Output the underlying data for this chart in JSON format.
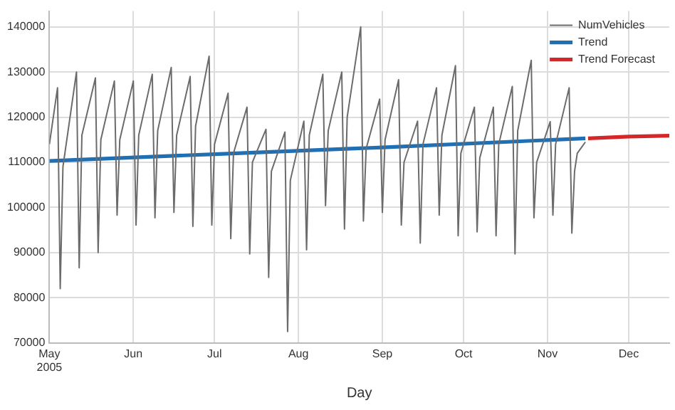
{
  "chart_data": {
    "type": "line",
    "xlabel": "Day",
    "xlim": [
      "2005-05-01",
      "2005-12-16"
    ],
    "xticks": [
      {
        "value": "2005-05-01",
        "label": "May\n2005"
      },
      {
        "value": "2005-06-01",
        "label": "Jun"
      },
      {
        "value": "2005-07-01",
        "label": "Jul"
      },
      {
        "value": "2005-08-01",
        "label": "Aug"
      },
      {
        "value": "2005-09-01",
        "label": "Sep"
      },
      {
        "value": "2005-10-01",
        "label": "Oct"
      },
      {
        "value": "2005-11-01",
        "label": "Nov"
      },
      {
        "value": "2005-12-01",
        "label": "Dec"
      }
    ],
    "ylim": [
      70000,
      143500
    ],
    "yticks": [
      70000,
      80000,
      90000,
      100000,
      110000,
      120000,
      130000,
      140000
    ],
    "grid": true,
    "legend": "top right",
    "marker": "none",
    "line_style": "solid",
    "series": [
      {
        "name": "NumVehicles",
        "color": "#6b6b6b",
        "x": [
          "2005-05-01",
          "2005-05-04",
          "2005-05-05",
          "2005-05-06",
          "2005-05-11",
          "2005-05-12",
          "2005-05-13",
          "2005-05-18",
          "2005-05-19",
          "2005-05-20",
          "2005-05-25",
          "2005-05-26",
          "2005-05-27",
          "2005-06-01",
          "2005-06-02",
          "2005-06-03",
          "2005-06-08",
          "2005-06-09",
          "2005-06-10",
          "2005-06-15",
          "2005-06-16",
          "2005-06-17",
          "2005-06-22",
          "2005-06-23",
          "2005-06-24",
          "2005-06-29",
          "2005-06-30",
          "2005-07-01",
          "2005-07-06",
          "2005-07-07",
          "2005-07-08",
          "2005-07-13",
          "2005-07-14",
          "2005-07-15",
          "2005-07-20",
          "2005-07-21",
          "2005-07-22",
          "2005-07-27",
          "2005-07-28",
          "2005-07-29",
          "2005-08-03",
          "2005-08-04",
          "2005-08-05",
          "2005-08-10",
          "2005-08-11",
          "2005-08-12",
          "2005-08-17",
          "2005-08-18",
          "2005-08-19",
          "2005-08-24",
          "2005-08-25",
          "2005-08-26",
          "2005-08-31",
          "2005-09-01",
          "2005-09-02",
          "2005-09-07",
          "2005-09-08",
          "2005-09-09",
          "2005-09-14",
          "2005-09-15",
          "2005-09-16",
          "2005-09-21",
          "2005-09-22",
          "2005-09-23",
          "2005-09-28",
          "2005-09-29",
          "2005-09-30",
          "2005-10-05",
          "2005-10-06",
          "2005-10-07",
          "2005-10-12",
          "2005-10-13",
          "2005-10-14",
          "2005-10-19",
          "2005-10-20",
          "2005-10-21",
          "2005-10-26",
          "2005-10-27",
          "2005-10-28",
          "2005-11-02",
          "2005-11-03",
          "2005-11-04",
          "2005-11-09",
          "2005-11-10",
          "2005-11-11",
          "2005-11-12",
          "2005-11-15"
        ],
        "values": [
          114000,
          126500,
          82000,
          109000,
          130000,
          86600,
          116000,
          128700,
          90000,
          115000,
          128000,
          98300,
          115000,
          128000,
          96100,
          116000,
          129500,
          97700,
          117000,
          131000,
          98900,
          116000,
          129000,
          95800,
          118000,
          133500,
          96100,
          114000,
          125300,
          93100,
          112000,
          122200,
          89700,
          110000,
          117300,
          84500,
          108000,
          116700,
          72500,
          106000,
          119100,
          90600,
          116000,
          129500,
          100400,
          117000,
          130000,
          95200,
          120000,
          140000,
          97000,
          113000,
          124000,
          98900,
          115000,
          128300,
          96100,
          110000,
          119100,
          92100,
          114000,
          126500,
          98300,
          116000,
          131400,
          93700,
          112000,
          122200,
          94600,
          111000,
          122200,
          93700,
          114000,
          126800,
          89700,
          117000,
          132600,
          97700,
          110000,
          119000,
          98300,
          114000,
          126500,
          94300,
          108000,
          112000,
          114500
        ]
      },
      {
        "name": "Trend",
        "color": "#1f6fb4",
        "x": [
          "2005-05-01",
          "2005-07-01",
          "2005-09-01",
          "2005-11-15"
        ],
        "values": [
          110300,
          111800,
          113300,
          115300
        ]
      },
      {
        "name": "Trend Forecast",
        "color": "#d62728",
        "x": [
          "2005-11-16",
          "2005-12-01",
          "2005-12-16"
        ],
        "values": [
          115300,
          115700,
          115900
        ]
      }
    ]
  }
}
